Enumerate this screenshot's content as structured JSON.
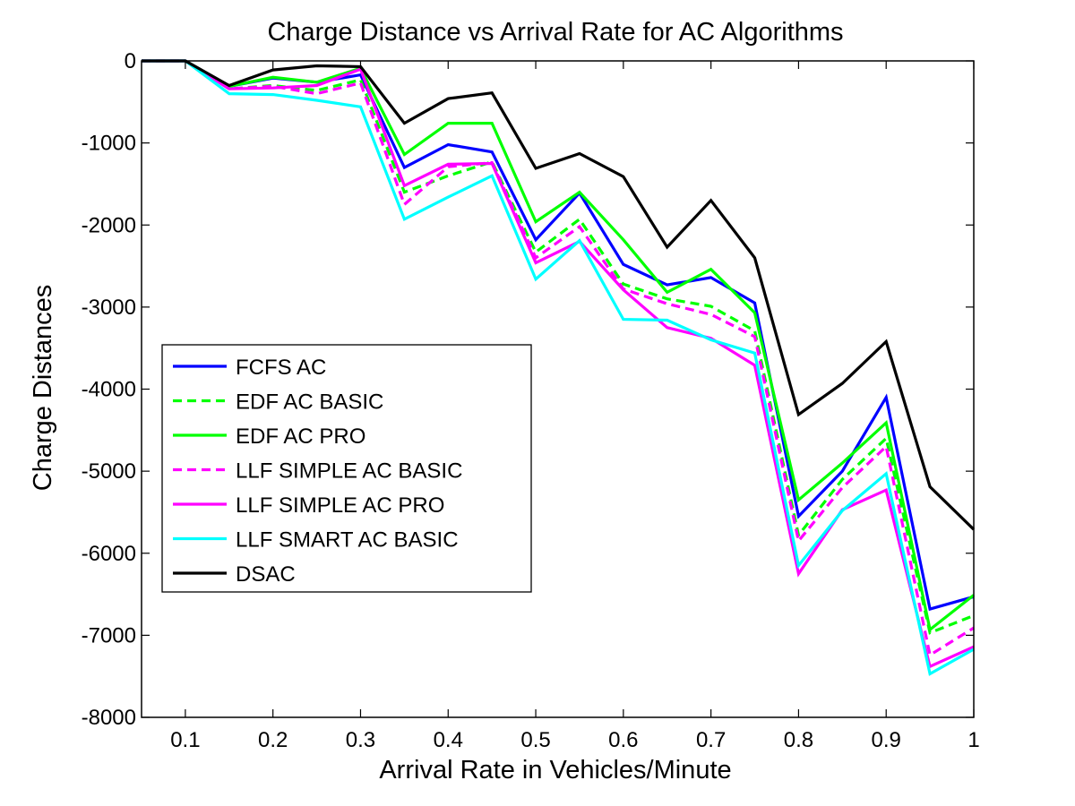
{
  "chart_data": {
    "type": "line",
    "title": "Charge Distance vs Arrival Rate for AC Algorithms",
    "xlabel": "Arrival Rate in Vehicles/Minute",
    "ylabel": "Charge Distances",
    "xlim": [
      0.05,
      1.0
    ],
    "ylim": [
      -8000,
      0
    ],
    "xticks": [
      0.1,
      0.2,
      0.3,
      0.4,
      0.5,
      0.6,
      0.7,
      0.8,
      0.9,
      1
    ],
    "xtick_labels": [
      "0.1",
      "0.2",
      "0.3",
      "0.4",
      "0.5",
      "0.6",
      "0.7",
      "0.8",
      "0.9",
      "1"
    ],
    "yticks": [
      0,
      -1000,
      -2000,
      -3000,
      -4000,
      -5000,
      -6000,
      -7000,
      -8000
    ],
    "ytick_labels": [
      "0",
      "-1000",
      "-2000",
      "-3000",
      "-4000",
      "-5000",
      "-6000",
      "-7000",
      "-8000"
    ],
    "grid": false,
    "legend_position": "middle-left",
    "x": [
      0.05,
      0.1,
      0.15,
      0.2,
      0.25,
      0.3,
      0.35,
      0.4,
      0.45,
      0.5,
      0.55,
      0.6,
      0.65,
      0.7,
      0.75,
      0.8,
      0.85,
      0.9,
      0.95,
      1.0
    ],
    "series": [
      {
        "name": "FCFS AC",
        "color": "#0000ff",
        "dash": "solid",
        "values": [
          0,
          0,
          -310,
          -210,
          -260,
          -170,
          -1300,
          -1020,
          -1110,
          -2180,
          -1610,
          -2480,
          -2730,
          -2640,
          -2950,
          -5550,
          -5000,
          -4100,
          -6680,
          -6530
        ]
      },
      {
        "name": "EDF AC BASIC",
        "color": "#00ff00",
        "dash": "dashed",
        "values": [
          0,
          0,
          -340,
          -300,
          -360,
          -230,
          -1600,
          -1400,
          -1230,
          -2330,
          -1930,
          -2720,
          -2900,
          -2990,
          -3290,
          -5780,
          -5100,
          -4600,
          -6970,
          -6760
        ]
      },
      {
        "name": "EDF AC PRO",
        "color": "#00ff00",
        "dash": "solid",
        "values": [
          0,
          0,
          -310,
          -200,
          -260,
          -90,
          -1140,
          -760,
          -760,
          -1960,
          -1600,
          -2180,
          -2820,
          -2540,
          -3070,
          -5350,
          -4900,
          -4410,
          -6930,
          -6510
        ]
      },
      {
        "name": "LLF SIMPLE AC BASIC",
        "color": "#ff00ff",
        "dash": "dashed",
        "values": [
          0,
          0,
          -340,
          -310,
          -400,
          -270,
          -1750,
          -1290,
          -1240,
          -2400,
          -2020,
          -2780,
          -2960,
          -3090,
          -3360,
          -5850,
          -5200,
          -4700,
          -7240,
          -6910
        ]
      },
      {
        "name": "LLF SIMPLE AC PRO",
        "color": "#ff00ff",
        "dash": "solid",
        "values": [
          0,
          0,
          -340,
          -330,
          -300,
          -100,
          -1520,
          -1260,
          -1250,
          -2460,
          -2200,
          -2790,
          -3250,
          -3380,
          -3710,
          -6250,
          -5470,
          -5230,
          -7380,
          -7140
        ]
      },
      {
        "name": "LLF SMART AC BASIC",
        "color": "#00ffff",
        "dash": "solid",
        "values": [
          0,
          0,
          -400,
          -410,
          -480,
          -560,
          -1930,
          -1660,
          -1400,
          -2660,
          -2190,
          -3150,
          -3160,
          -3400,
          -3560,
          -6150,
          -5480,
          -5030,
          -7470,
          -7170
        ]
      },
      {
        "name": "DSAC",
        "color": "#000000",
        "dash": "solid",
        "values": [
          0,
          0,
          -300,
          -110,
          -60,
          -70,
          -760,
          -460,
          -390,
          -1310,
          -1130,
          -1410,
          -2270,
          -1700,
          -2400,
          -4310,
          -3930,
          -3420,
          -5190,
          -5710
        ]
      }
    ]
  }
}
